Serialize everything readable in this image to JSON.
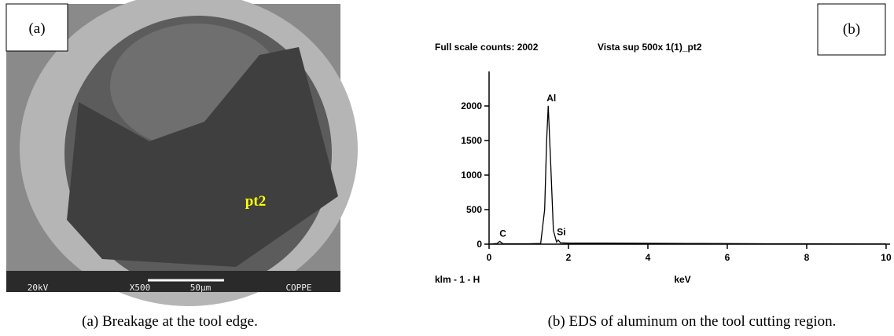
{
  "panel_a": {
    "label": "(a)",
    "point_label": "pt2",
    "voltage": "20kV",
    "magnification": "X500",
    "scale": "50μm",
    "lab": "COPPE"
  },
  "chart_data": {
    "type": "line",
    "panel_label": "(b)",
    "header_left": "Full scale counts: 2002",
    "header_right": "Vista sup 500x 1(1)_pt2",
    "x_label": "keV",
    "corner_label": "klm - 1 - H",
    "x": [
      0,
      0.2,
      0.27,
      0.35,
      1.0,
      1.3,
      1.4,
      1.45,
      1.49,
      1.55,
      1.62,
      1.7,
      1.74,
      1.8,
      2.0,
      3,
      4,
      5,
      6,
      7,
      8,
      9,
      10
    ],
    "series": [
      {
        "name": "EDS",
        "color": "#000000",
        "values": [
          0,
          10,
          40,
          5,
          5,
          10,
          500,
          1500,
          2002,
          1200,
          200,
          30,
          60,
          20,
          15,
          15,
          12,
          10,
          8,
          6,
          5,
          4,
          3
        ]
      }
    ],
    "annotations": [
      {
        "text": "C",
        "x": 0.27,
        "y": 40
      },
      {
        "text": "Al",
        "x": 1.49,
        "y": 2002
      },
      {
        "text": "Si",
        "x": 1.74,
        "y": 60
      }
    ],
    "xlim": [
      0,
      10.1
    ],
    "ylim": [
      0,
      2500
    ],
    "xticks": [
      0,
      2,
      4,
      6,
      8,
      10
    ],
    "yticks": [
      0,
      500,
      1000,
      1500,
      2000
    ]
  },
  "captions": [
    "(a)  Breakage at the tool edge.",
    "(b) EDS of aluminum on the tool cutting region."
  ]
}
